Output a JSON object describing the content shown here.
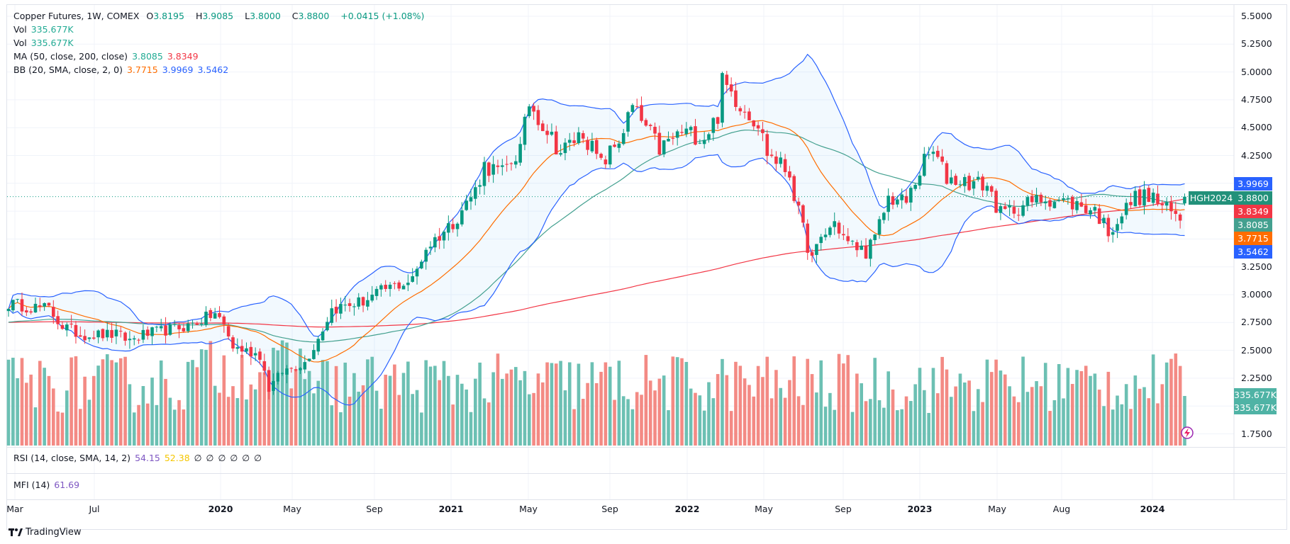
{
  "legend": {
    "symbol": "Copper Futures, 1W, COMEX",
    "open_label": "O",
    "open": "3.8195",
    "high_label": "H",
    "high": "3.9085",
    "low_label": "L",
    "low": "3.8000",
    "close_label": "C",
    "close": "3.8800",
    "change": "+0.0415 (+1.08%)",
    "vol1_label": "Vol",
    "vol1": "335.677K",
    "vol2_label": "Vol",
    "vol2": "335.677K",
    "ma_label": "MA (50, close, 200, close)",
    "ma50": "3.8085",
    "ma200": "3.8349",
    "bb_label": "BB (20, SMA, close, 2, 0)",
    "bb_basis": "3.7715",
    "bb_upper": "3.9969",
    "bb_lower": "3.5462"
  },
  "rsi": {
    "label": "RSI (14, close, SMA, 14, 2)",
    "value": "54.15",
    "sma": "52.38",
    "empties": [
      "∅",
      "∅",
      "∅",
      "∅",
      "∅",
      "∅"
    ]
  },
  "mfi": {
    "label": "MFI (14)",
    "value": "61.69"
  },
  "price_tags": {
    "symbol_tag": "HGH2024",
    "last": "3.8800",
    "bb_upper": "3.9969",
    "ma200": "3.8349",
    "ma50": "3.8085",
    "bb_basis": "3.7715",
    "bb_lower": "3.5462",
    "vol1": "335.677K",
    "vol2": "335.677K"
  },
  "brand": "TradingView",
  "colors": {
    "up": "#089981",
    "down": "#f23645",
    "bb": "#2962ff",
    "basis": "#ff6d00",
    "ma50": "#43a08f",
    "ma200": "#f23645"
  },
  "chart_data": {
    "type": "candlestick",
    "title": "Copper Futures, 1W, COMEX",
    "interval": "1W",
    "ylim": [
      1.75,
      5.5
    ],
    "y_ticks": [
      "5.5000",
      "5.2500",
      "5.0000",
      "4.7500",
      "4.5000",
      "4.2500",
      "3.2500",
      "3.0000",
      "2.7500",
      "2.5000",
      "2.2500",
      "1.7500"
    ],
    "x_ticks": [
      "Mar",
      "Jul",
      "2020",
      "May",
      "Sep",
      "2021",
      "May",
      "Sep",
      "2022",
      "May",
      "Sep",
      "2023",
      "May",
      "Aug",
      "2024"
    ],
    "bar_count": 263,
    "close_keypoints": [
      [
        0,
        2.92
      ],
      [
        9,
        2.87
      ],
      [
        12,
        2.72
      ],
      [
        16,
        2.64
      ],
      [
        24,
        2.64
      ],
      [
        27,
        2.59
      ],
      [
        30,
        2.64
      ],
      [
        40,
        2.72
      ],
      [
        46,
        2.83
      ],
      [
        48,
        2.72
      ],
      [
        50,
        2.53
      ],
      [
        56,
        2.46
      ],
      [
        58,
        2.16
      ],
      [
        61,
        2.31
      ],
      [
        66,
        2.39
      ],
      [
        69,
        2.61
      ],
      [
        72,
        2.87
      ],
      [
        79,
        2.94
      ],
      [
        84,
        3.05
      ],
      [
        90,
        3.13
      ],
      [
        93,
        3.42
      ],
      [
        99,
        3.65
      ],
      [
        104,
        3.94
      ],
      [
        106,
        4.16
      ],
      [
        110,
        4.09
      ],
      [
        114,
        4.31
      ],
      [
        116,
        4.72
      ],
      [
        119,
        4.54
      ],
      [
        123,
        4.28
      ],
      [
        128,
        4.46
      ],
      [
        132,
        4.16
      ],
      [
        136,
        4.39
      ],
      [
        139,
        4.68
      ],
      [
        145,
        4.31
      ],
      [
        150,
        4.46
      ],
      [
        155,
        4.42
      ],
      [
        158,
        4.61
      ],
      [
        159,
        4.91
      ],
      [
        163,
        4.72
      ],
      [
        167,
        4.54
      ],
      [
        169,
        4.28
      ],
      [
        174,
        4.09
      ],
      [
        176,
        3.72
      ],
      [
        179,
        3.31
      ],
      [
        181,
        3.5
      ],
      [
        184,
        3.65
      ],
      [
        187,
        3.46
      ],
      [
        191,
        3.39
      ],
      [
        193,
        3.5
      ],
      [
        196,
        3.87
      ],
      [
        200,
        3.83
      ],
      [
        204,
        4.2
      ],
      [
        206,
        4.28
      ],
      [
        209,
        4.05
      ],
      [
        214,
        4.01
      ],
      [
        218,
        3.98
      ],
      [
        221,
        3.72
      ],
      [
        225,
        3.79
      ],
      [
        231,
        3.87
      ],
      [
        236,
        3.83
      ],
      [
        242,
        3.76
      ],
      [
        245,
        3.57
      ],
      [
        248,
        3.72
      ],
      [
        251,
        3.88
      ],
      [
        255,
        3.87
      ],
      [
        258,
        3.76
      ],
      [
        261,
        3.68
      ],
      [
        262,
        3.88
      ]
    ],
    "last_bar": {
      "open": 3.8195,
      "high": 3.9085,
      "low": 3.8,
      "close": 3.88,
      "volume_k": 335.677
    },
    "indicators": [
      "MA 50",
      "MA 200",
      "BB 20 2",
      "Volume",
      "RSI 14",
      "MFI 14"
    ]
  }
}
